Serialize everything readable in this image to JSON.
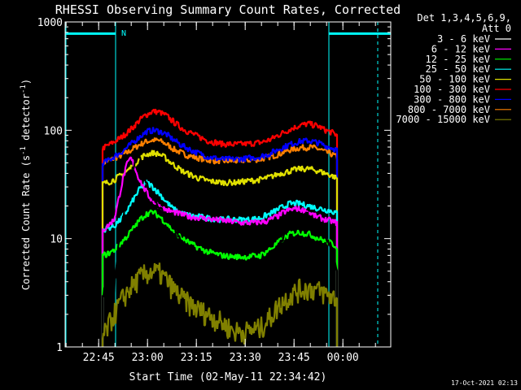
{
  "chart_data": {
    "type": "line",
    "title": "RHESSI Observing Summary Count Rates, Corrected",
    "xlabel": "Start Time (02-May-11 22:34:42)",
    "ylabel": "Corrected Count Rate (s",
    "ylabel_sup1": "-1",
    "ylabel_mid": " detector",
    "ylabel_sup2": "-1",
    "ylabel_end": ")",
    "yscale": "log",
    "ylim": [
      1,
      1000
    ],
    "y_ticks": [
      {
        "value": 1,
        "label": "1"
      },
      {
        "value": 10,
        "label": "10"
      },
      {
        "value": 100,
        "label": "100"
      },
      {
        "value": 1000,
        "label": "1000"
      }
    ],
    "xlim_minutes": [
      0,
      100
    ],
    "x_ticks": [
      {
        "minutes": 10.3,
        "label": "22:45"
      },
      {
        "minutes": 25.3,
        "label": "23:00"
      },
      {
        "minutes": 40.3,
        "label": "23:15"
      },
      {
        "minutes": 55.3,
        "label": "23:30"
      },
      {
        "minutes": 70.3,
        "label": "23:45"
      },
      {
        "minutes": 85.3,
        "label": "00:00"
      }
    ],
    "legend": {
      "header": [
        "Det 1,3,4,5,6,9,",
        "Att 0"
      ],
      "entries": [
        {
          "label": "3 - 6 keV",
          "color": "#000000"
        },
        {
          "label": "6 - 12 keV",
          "color": "#ff00ff"
        },
        {
          "label": "12 - 25 keV",
          "color": "#00ff00"
        },
        {
          "label": "25 - 50 keV",
          "color": "#00ffff"
        },
        {
          "label": "50 - 100 keV",
          "color": "#e0e000"
        },
        {
          "label": "100 - 300 keV",
          "color": "#ff0000"
        },
        {
          "label": "300 - 800 keV",
          "color": "#0000ff"
        },
        {
          "label": "800 - 7000 keV",
          "color": "#ff8000"
        },
        {
          "label": "7000 - 15000 keV",
          "color": "#808000"
        }
      ]
    },
    "annotations": {
      "night_marker": "N",
      "saa_shade_minutes": [
        [
          0,
          15.5
        ],
        [
          81,
          100
        ]
      ],
      "saa_dashed_minutes": [
        15.5,
        96
      ],
      "timestamp": "17-Oct-2021 02:13"
    },
    "series": [
      {
        "name": "800 - 7000 keV",
        "color": "#ff8000",
        "points": [
          [
            11.5,
            50
          ],
          [
            13,
            52
          ],
          [
            15,
            55
          ],
          [
            17,
            58
          ],
          [
            19,
            62
          ],
          [
            21,
            68
          ],
          [
            23,
            74
          ],
          [
            25,
            79
          ],
          [
            27,
            81
          ],
          [
            29,
            80
          ],
          [
            31,
            75
          ],
          [
            33,
            68
          ],
          [
            36,
            61
          ],
          [
            40,
            56
          ],
          [
            44,
            53
          ],
          [
            48,
            52
          ],
          [
            52,
            52
          ],
          [
            56,
            53
          ],
          [
            60,
            54
          ],
          [
            63,
            57
          ],
          [
            66,
            61
          ],
          [
            69,
            66
          ],
          [
            72,
            69
          ],
          [
            75,
            70
          ],
          [
            78,
            67
          ],
          [
            80,
            63
          ],
          [
            82,
            60
          ],
          [
            83.5,
            56
          ]
        ]
      },
      {
        "name": "100 - 300 keV",
        "color": "#ff0000",
        "points": [
          [
            11.5,
            68
          ],
          [
            13,
            72
          ],
          [
            15,
            78
          ],
          [
            17,
            85
          ],
          [
            19,
            95
          ],
          [
            21,
            108
          ],
          [
            23,
            125
          ],
          [
            25,
            140
          ],
          [
            27,
            150
          ],
          [
            29,
            147
          ],
          [
            31,
            137
          ],
          [
            33,
            122
          ],
          [
            36,
            104
          ],
          [
            40,
            90
          ],
          [
            44,
            80
          ],
          [
            48,
            75
          ],
          [
            52,
            74
          ],
          [
            56,
            75
          ],
          [
            60,
            77
          ],
          [
            63,
            82
          ],
          [
            66,
            92
          ],
          [
            69,
            102
          ],
          [
            72,
            111
          ],
          [
            75,
            115
          ],
          [
            78,
            108
          ],
          [
            80,
            100
          ],
          [
            82,
            95
          ],
          [
            83.5,
            90
          ]
        ]
      },
      {
        "name": "300 - 800 keV",
        "color": "#0000ff",
        "points": [
          [
            11.5,
            50
          ],
          [
            13,
            52
          ],
          [
            15,
            57
          ],
          [
            17,
            62
          ],
          [
            19,
            69
          ],
          [
            21,
            78
          ],
          [
            23,
            88
          ],
          [
            25,
            97
          ],
          [
            27,
            100
          ],
          [
            29,
            98
          ],
          [
            31,
            92
          ],
          [
            33,
            83
          ],
          [
            36,
            72
          ],
          [
            40,
            63
          ],
          [
            44,
            57
          ],
          [
            48,
            54
          ],
          [
            52,
            54
          ],
          [
            56,
            55
          ],
          [
            60,
            57
          ],
          [
            63,
            61
          ],
          [
            66,
            68
          ],
          [
            69,
            74
          ],
          [
            72,
            79
          ],
          [
            75,
            80
          ],
          [
            78,
            76
          ],
          [
            80,
            72
          ],
          [
            82,
            69
          ],
          [
            83.5,
            66
          ]
        ]
      },
      {
        "name": "50 - 100 keV",
        "color": "#e0e000",
        "points": [
          [
            11.5,
            32
          ],
          [
            13,
            33
          ],
          [
            15,
            35
          ],
          [
            17,
            38
          ],
          [
            19,
            42
          ],
          [
            21,
            48
          ],
          [
            23,
            55
          ],
          [
            25,
            60
          ],
          [
            27,
            62
          ],
          [
            29,
            60
          ],
          [
            31,
            55
          ],
          [
            33,
            49
          ],
          [
            36,
            42
          ],
          [
            40,
            37
          ],
          [
            44,
            34
          ],
          [
            48,
            33
          ],
          [
            52,
            33
          ],
          [
            56,
            34
          ],
          [
            60,
            35
          ],
          [
            63,
            37
          ],
          [
            66,
            40
          ],
          [
            69,
            42
          ],
          [
            72,
            44
          ],
          [
            75,
            44
          ],
          [
            78,
            42
          ],
          [
            80,
            40
          ],
          [
            82,
            38
          ],
          [
            83.5,
            36
          ]
        ]
      },
      {
        "name": "25 - 50 keV",
        "color": "#00ffff",
        "points": [
          [
            11.5,
            12
          ],
          [
            13,
            12.5
          ],
          [
            15,
            13
          ],
          [
            17,
            15
          ],
          [
            19,
            18
          ],
          [
            21,
            23
          ],
          [
            23,
            29
          ],
          [
            25,
            33
          ],
          [
            27,
            30
          ],
          [
            29,
            26
          ],
          [
            31,
            22
          ],
          [
            33,
            19
          ],
          [
            36,
            17
          ],
          [
            40,
            16
          ],
          [
            44,
            15.5
          ],
          [
            48,
            15
          ],
          [
            52,
            15
          ],
          [
            56,
            15
          ],
          [
            60,
            15.5
          ],
          [
            63,
            17
          ],
          [
            66,
            19
          ],
          [
            69,
            21
          ],
          [
            72,
            21
          ],
          [
            75,
            20
          ],
          [
            78,
            19
          ],
          [
            80,
            18.5
          ],
          [
            82,
            18
          ],
          [
            83.5,
            17
          ]
        ]
      },
      {
        "name": "6 - 12 keV",
        "color": "#ff00ff",
        "points": [
          [
            11.5,
            12
          ],
          [
            13,
            13
          ],
          [
            15,
            15
          ],
          [
            16,
            20
          ],
          [
            17,
            28
          ],
          [
            18,
            38
          ],
          [
            19,
            48
          ],
          [
            20,
            55
          ],
          [
            21,
            50
          ],
          [
            22,
            40
          ],
          [
            24,
            30
          ],
          [
            26,
            24
          ],
          [
            28,
            21
          ],
          [
            30,
            19
          ],
          [
            32,
            18
          ],
          [
            35,
            17
          ],
          [
            38,
            16
          ],
          [
            42,
            15.5
          ],
          [
            46,
            15
          ],
          [
            50,
            14.5
          ],
          [
            54,
            14
          ],
          [
            58,
            14
          ],
          [
            62,
            14.5
          ],
          [
            65,
            16
          ],
          [
            68,
            18
          ],
          [
            71,
            19
          ],
          [
            74,
            18
          ],
          [
            77,
            16
          ],
          [
            80,
            15
          ],
          [
            83.5,
            14
          ]
        ]
      },
      {
        "name": "12 - 25 keV",
        "color": "#00ff00",
        "points": [
          [
            11.5,
            7
          ],
          [
            13,
            7.2
          ],
          [
            15,
            7.8
          ],
          [
            17,
            9
          ],
          [
            19,
            10.5
          ],
          [
            21,
            12.5
          ],
          [
            23,
            15
          ],
          [
            25,
            17
          ],
          [
            27,
            17.5
          ],
          [
            29,
            16
          ],
          [
            31,
            14
          ],
          [
            33,
            12
          ],
          [
            36,
            10
          ],
          [
            40,
            8.5
          ],
          [
            44,
            7.5
          ],
          [
            48,
            7
          ],
          [
            52,
            6.8
          ],
          [
            56,
            6.8
          ],
          [
            60,
            7
          ],
          [
            63,
            8
          ],
          [
            66,
            9.5
          ],
          [
            69,
            11
          ],
          [
            72,
            11.5
          ],
          [
            75,
            11
          ],
          [
            78,
            10
          ],
          [
            80,
            9.5
          ],
          [
            82,
            9
          ],
          [
            83.5,
            8.5
          ]
        ]
      },
      {
        "name": "3 - 6 keV",
        "color": "#000000",
        "points": [
          [
            11.5,
            2.8
          ],
          [
            13,
            3
          ],
          [
            15,
            3.2
          ],
          [
            15.8,
            6
          ],
          [
            16.5,
            10
          ],
          [
            17.5,
            14
          ],
          [
            18.5,
            20
          ],
          [
            19.5,
            28
          ],
          [
            20.5,
            40
          ],
          [
            21.5,
            55
          ],
          [
            22.5,
            62
          ],
          [
            23.5,
            48
          ],
          [
            25,
            32
          ],
          [
            27,
            24
          ],
          [
            29,
            19
          ],
          [
            31,
            16
          ],
          [
            33,
            13
          ],
          [
            35,
            10
          ],
          [
            37,
            8
          ],
          [
            40,
            6.5
          ],
          [
            43,
            5.5
          ],
          [
            46,
            5
          ],
          [
            50,
            4.5
          ],
          [
            53,
            4
          ],
          [
            56,
            3.8
          ],
          [
            59,
            4.3
          ],
          [
            62,
            5.5
          ],
          [
            65,
            8
          ],
          [
            68,
            12
          ],
          [
            71,
            16
          ],
          [
            74,
            17
          ],
          [
            77,
            14
          ],
          [
            79,
            12
          ],
          [
            81,
            9
          ],
          [
            83.5,
            5
          ]
        ]
      },
      {
        "name": "7000 - 15000 keV",
        "color": "#808000",
        "points": [
          [
            11.5,
            1.2
          ],
          [
            13,
            1.5
          ],
          [
            15,
            2
          ],
          [
            17,
            2.6
          ],
          [
            19,
            3.2
          ],
          [
            21,
            3.8
          ],
          [
            23,
            4.4
          ],
          [
            25,
            4.8
          ],
          [
            27,
            5
          ],
          [
            29,
            4.8
          ],
          [
            31,
            4.2
          ],
          [
            33,
            3.5
          ],
          [
            36,
            2.8
          ],
          [
            40,
            2.3
          ],
          [
            44,
            2
          ],
          [
            48,
            1.7
          ],
          [
            52,
            1.4
          ],
          [
            56,
            1.4
          ],
          [
            60,
            1.5
          ],
          [
            63,
            1.9
          ],
          [
            66,
            2.5
          ],
          [
            69,
            3
          ],
          [
            72,
            3.4
          ],
          [
            75,
            3.5
          ],
          [
            78,
            3.3
          ],
          [
            80,
            3.1
          ],
          [
            82,
            2.9
          ],
          [
            83.5,
            2.8
          ]
        ]
      }
    ]
  }
}
